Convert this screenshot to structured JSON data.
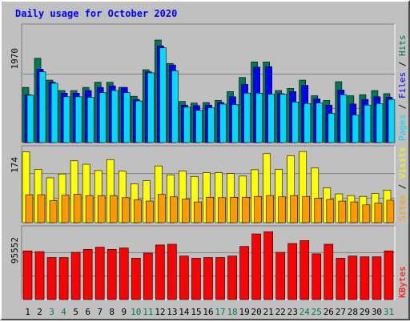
{
  "colors": {
    "background": "#c0c0c0",
    "panel": "#c0c0c0",
    "title": "#0000ff",
    "hits": "#007a52",
    "files": "#0000ff",
    "pages": "#00d8ff",
    "visits": "#ffff00",
    "sites": "#ff9900",
    "kbytes": "#ff0000",
    "weekend_label": "#007a52",
    "weekday_label": "#000000",
    "separator": "#000000"
  },
  "chart_data": [
    {
      "type": "bar",
      "panel": "hits-files-pages",
      "title": "Daily usage for October 2020",
      "y_max_label": "1970",
      "ylim": [
        0,
        1970
      ],
      "legend": [
        "Pages",
        "Files",
        "Hits"
      ],
      "categories": [
        "1",
        "2",
        "3",
        "4",
        "5",
        "6",
        "7",
        "8",
        "9",
        "10",
        "11",
        "12",
        "13",
        "14",
        "15",
        "16",
        "17",
        "18",
        "19",
        "20",
        "21",
        "22",
        "23",
        "24",
        "25",
        "26",
        "27",
        "28",
        "29",
        "30",
        "31"
      ],
      "series": [
        {
          "name": "Hits",
          "values": [
            1060,
            1620,
            1200,
            1000,
            1000,
            1060,
            1160,
            1160,
            1060,
            890,
            1400,
            1970,
            1520,
            790,
            760,
            770,
            810,
            980,
            1250,
            1550,
            1550,
            1000,
            1040,
            1200,
            900,
            810,
            1170,
            900,
            920,
            1000,
            940
          ]
        },
        {
          "name": "Files",
          "values": [
            920,
            1410,
            1160,
            950,
            950,
            1000,
            1060,
            1090,
            1060,
            830,
            1360,
            1860,
            1490,
            720,
            710,
            720,
            770,
            880,
            1120,
            1450,
            1460,
            940,
            980,
            1100,
            840,
            720,
            1010,
            740,
            830,
            880,
            870
          ]
        },
        {
          "name": "Pages",
          "values": [
            910,
            1360,
            1140,
            880,
            880,
            870,
            960,
            1000,
            960,
            800,
            1340,
            1820,
            1380,
            680,
            620,
            670,
            740,
            730,
            950,
            950,
            930,
            930,
            780,
            750,
            760,
            560,
            920,
            530,
            720,
            750,
            830
          ]
        }
      ]
    },
    {
      "type": "bar",
      "panel": "visits-sites",
      "y_max_label": "174",
      "ylim": [
        0,
        174
      ],
      "legend": [
        "Sites",
        "Visits"
      ],
      "categories": [
        "1",
        "2",
        "3",
        "4",
        "5",
        "6",
        "7",
        "8",
        "9",
        "10",
        "11",
        "12",
        "13",
        "14",
        "15",
        "16",
        "17",
        "18",
        "19",
        "20",
        "21",
        "22",
        "23",
        "24",
        "25",
        "26",
        "27",
        "28",
        "29",
        "30",
        "31"
      ],
      "series": [
        {
          "name": "Visits",
          "values": [
            167,
            126,
            106,
            115,
            146,
            138,
            123,
            149,
            122,
            92,
            99,
            134,
            113,
            122,
            109,
            118,
            118,
            116,
            110,
            125,
            163,
            126,
            158,
            168,
            129,
            82,
            68,
            64,
            62,
            69,
            77
          ]
        },
        {
          "name": "Sites",
          "values": [
            66,
            66,
            52,
            65,
            67,
            64,
            64,
            64,
            59,
            54,
            51,
            67,
            61,
            56,
            49,
            60,
            59,
            60,
            60,
            62,
            64,
            61,
            64,
            62,
            58,
            55,
            51,
            49,
            42,
            46,
            53
          ]
        }
      ]
    },
    {
      "type": "bar",
      "panel": "kbytes",
      "y_max_label": "95552",
      "ylim": [
        0,
        95552
      ],
      "legend": [
        "KBytes"
      ],
      "categories": [
        "1",
        "2",
        "3",
        "4",
        "5",
        "6",
        "7",
        "8",
        "9",
        "10",
        "11",
        "12",
        "13",
        "14",
        "15",
        "16",
        "17",
        "18",
        "19",
        "20",
        "21",
        "22",
        "23",
        "24",
        "25",
        "26",
        "27",
        "28",
        "29",
        "30",
        "31"
      ],
      "series": [
        {
          "name": "KBytes",
          "values": [
            66000,
            65000,
            57000,
            57000,
            64000,
            68000,
            71000,
            68000,
            70000,
            56000,
            63000,
            74000,
            75000,
            59000,
            56000,
            57000,
            57000,
            59000,
            72000,
            89000,
            92000,
            64000,
            76000,
            80000,
            62000,
            75000,
            56000,
            59000,
            58000,
            58000,
            66000
          ]
        }
      ]
    }
  ],
  "weekend_days": [
    "3",
    "4",
    "10",
    "11",
    "17",
    "18",
    "24",
    "25",
    "31"
  ]
}
